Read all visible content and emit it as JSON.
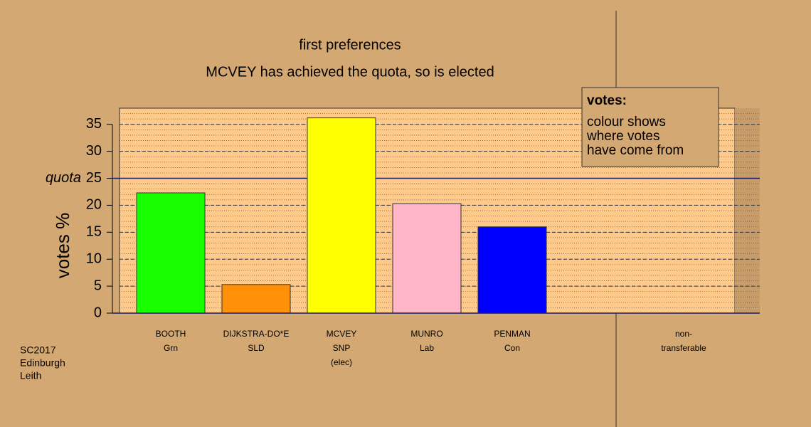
{
  "chart_data": {
    "type": "bar",
    "title": "first preferences",
    "subtitle": "MCVEY has achieved the quota, so is elected",
    "y_label": "votes %",
    "categories": [
      "BOOTH",
      "DIJKSTRA-DO*E",
      "MCVEY",
      "MUNRO",
      "PENMAN"
    ],
    "parties": [
      "Grn",
      "SLD",
      "SNP",
      "Lab",
      "Con"
    ],
    "notes": [
      null,
      null,
      "(elec)",
      null,
      null
    ],
    "values": [
      22.3,
      5.3,
      36.2,
      20.3,
      16.0
    ],
    "colors": [
      "#1aff00",
      "#ff9008",
      "#ffff00",
      "#ffb6c8",
      "#0000ff"
    ],
    "extra_column": [
      "non-",
      "transferable"
    ],
    "quota": {
      "value": 25,
      "label": "quota"
    },
    "ylim": [
      0,
      38
    ],
    "yticks": [
      0,
      5,
      10,
      15,
      20,
      25,
      30,
      35
    ],
    "grid": true,
    "legend": {
      "title": "votes:",
      "lines": [
        "colour shows",
        "where votes",
        "have come from"
      ]
    },
    "footer": [
      "SC2017",
      "Edinburgh",
      "Leith"
    ]
  }
}
